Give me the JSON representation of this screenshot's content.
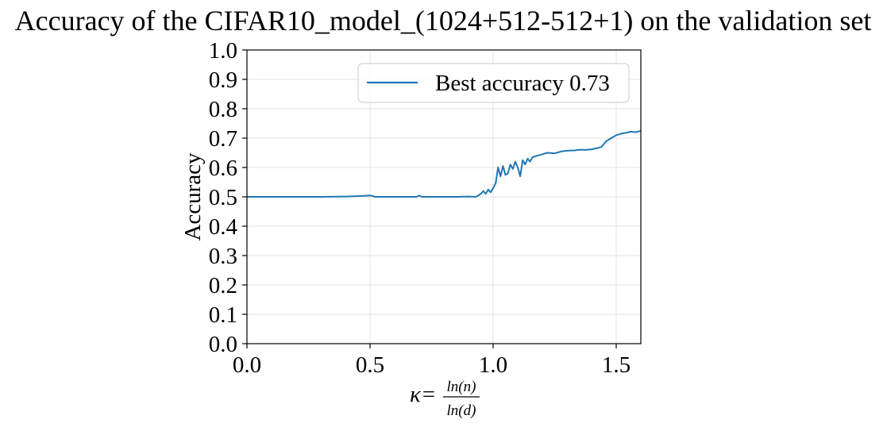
{
  "chart_data": {
    "type": "line",
    "title": "Accuracy of the CIFAR10_model_(1024+512-512+1) on the validation set",
    "xlabel": {
      "prefix": "κ=",
      "numerator": "ln(n)",
      "denominator": "ln(d)"
    },
    "ylabel": "Accuracy",
    "xlim": [
      0.0,
      1.6
    ],
    "ylim": [
      0.0,
      1.0
    ],
    "x_ticks": [
      {
        "value": 0.0,
        "label": "0.0"
      },
      {
        "value": 0.5,
        "label": "0.5"
      },
      {
        "value": 1.0,
        "label": "1.0"
      },
      {
        "value": 1.5,
        "label": "1.5"
      }
    ],
    "y_ticks": [
      {
        "value": 0.0,
        "label": "0.0"
      },
      {
        "value": 0.1,
        "label": "0.1"
      },
      {
        "value": 0.2,
        "label": "0.2"
      },
      {
        "value": 0.3,
        "label": "0.3"
      },
      {
        "value": 0.4,
        "label": "0.4"
      },
      {
        "value": 0.5,
        "label": "0.5"
      },
      {
        "value": 0.6,
        "label": "0.6"
      },
      {
        "value": 0.7,
        "label": "0.7"
      },
      {
        "value": 0.8,
        "label": "0.8"
      },
      {
        "value": 0.9,
        "label": "0.9"
      },
      {
        "value": 1.0,
        "label": "1.0"
      }
    ],
    "grid": true,
    "legend_position": "top-right",
    "series": [
      {
        "name": "Best accuracy 0.73",
        "color": "#1f77b4",
        "x": [
          0.0,
          0.1,
          0.2,
          0.3,
          0.4,
          0.47,
          0.5,
          0.52,
          0.55,
          0.6,
          0.65,
          0.69,
          0.7,
          0.71,
          0.73,
          0.8,
          0.85,
          0.9,
          0.93,
          0.95,
          0.96,
          0.97,
          0.98,
          0.99,
          1.0,
          1.01,
          1.02,
          1.03,
          1.04,
          1.05,
          1.06,
          1.07,
          1.08,
          1.09,
          1.1,
          1.11,
          1.12,
          1.13,
          1.14,
          1.15,
          1.16,
          1.18,
          1.2,
          1.22,
          1.25,
          1.28,
          1.3,
          1.33,
          1.35,
          1.38,
          1.4,
          1.42,
          1.44,
          1.45,
          1.46,
          1.48,
          1.5,
          1.52,
          1.54,
          1.56,
          1.58,
          1.6
        ],
        "y": [
          0.5,
          0.5,
          0.5,
          0.5,
          0.501,
          0.503,
          0.505,
          0.5,
          0.5,
          0.5,
          0.5,
          0.5,
          0.505,
          0.5,
          0.5,
          0.5,
          0.5,
          0.501,
          0.5,
          0.51,
          0.52,
          0.51,
          0.525,
          0.515,
          0.53,
          0.545,
          0.6,
          0.57,
          0.605,
          0.575,
          0.58,
          0.61,
          0.595,
          0.62,
          0.6,
          0.57,
          0.625,
          0.61,
          0.63,
          0.62,
          0.635,
          0.64,
          0.645,
          0.65,
          0.648,
          0.655,
          0.657,
          0.658,
          0.66,
          0.66,
          0.662,
          0.665,
          0.67,
          0.68,
          0.69,
          0.7,
          0.71,
          0.715,
          0.718,
          0.722,
          0.72,
          0.725
        ]
      }
    ]
  }
}
